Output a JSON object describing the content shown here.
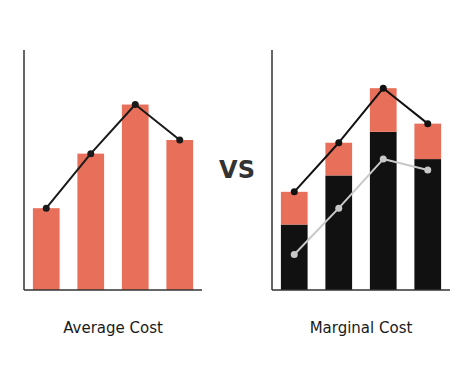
{
  "chart_data": [
    {
      "type": "bar",
      "title": "Average Cost",
      "annotation": "VS",
      "categories": [
        null,
        null,
        null,
        null
      ],
      "series": [
        {
          "type": "bar",
          "color": "#e8705a",
          "values": [
            0.3,
            0.5,
            0.68,
            0.55
          ]
        },
        {
          "type": "line",
          "color": "#1a1a1a",
          "marker": "circle",
          "values": [
            0.3,
            0.5,
            0.68,
            0.55
          ]
        }
      ],
      "ylim": [
        0,
        0.88
      ],
      "tick_labels": false,
      "grid": false
    },
    {
      "type": "bar",
      "title": "Marginal Cost",
      "stacked": true,
      "categories": [
        null,
        null,
        null,
        null
      ],
      "series": [
        {
          "type": "bar",
          "color": "#111111",
          "values": [
            0.24,
            0.42,
            0.58,
            0.48
          ]
        },
        {
          "type": "bar",
          "color": "#e8705a",
          "values": [
            0.12,
            0.12,
            0.16,
            0.13
          ]
        },
        {
          "type": "line",
          "color": "#c8c8c8",
          "marker": "circle",
          "values": [
            0.13,
            0.3,
            0.48,
            0.44
          ]
        },
        {
          "type": "line",
          "color": "#111111",
          "marker": "circle",
          "values": [
            0.36,
            0.54,
            0.74,
            0.61
          ]
        }
      ],
      "ylim": [
        0,
        0.88
      ],
      "tick_labels": false,
      "grid": false
    }
  ]
}
